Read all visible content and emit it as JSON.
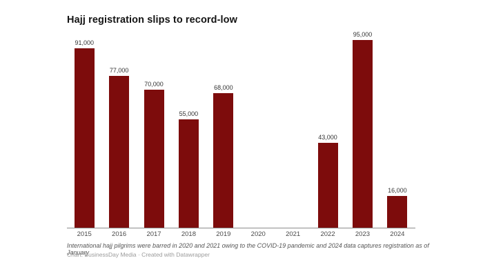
{
  "page": {
    "background": "#ffffff"
  },
  "header": {
    "title": "Hajj registration slips to record-low"
  },
  "footer": {
    "note": "International hajj pilgrims were barred in 2020 and 2021 owing to the COVID-19 pandemic and 2024 data captures registration as of January",
    "credit": "Chart: BusinessDay Media · Created with Datawrapper"
  },
  "colors": {
    "bar": "#7d0c0c",
    "axis_line": "#8c8c8c",
    "title_text": "#141414",
    "value_label_text": "#333333",
    "tick_text": "#494949",
    "note_text": "#555555",
    "credit_text": "#9b9b9b",
    "page_background": "#ffffff"
  },
  "chart_data": {
    "type": "bar",
    "title": "Hajj registration slips to record-low",
    "categories": [
      "2015",
      "2016",
      "2017",
      "2018",
      "2019",
      "2020",
      "2021",
      "2022",
      "2023",
      "2024"
    ],
    "values": [
      91000,
      77000,
      70000,
      55000,
      68000,
      null,
      null,
      43000,
      95000,
      16000
    ],
    "value_labels": [
      "91,000",
      "77,000",
      "70,000",
      "55,000",
      "68,000",
      null,
      null,
      "43,000",
      "95,000",
      "16,000"
    ],
    "xlabel": "",
    "ylabel": "",
    "ylim": [
      0,
      95000
    ],
    "grid": false,
    "legend": false,
    "missing_years_reason": "International hajj pilgrims were barred in 2020 and 2021 owing to the COVID-19 pandemic"
  }
}
